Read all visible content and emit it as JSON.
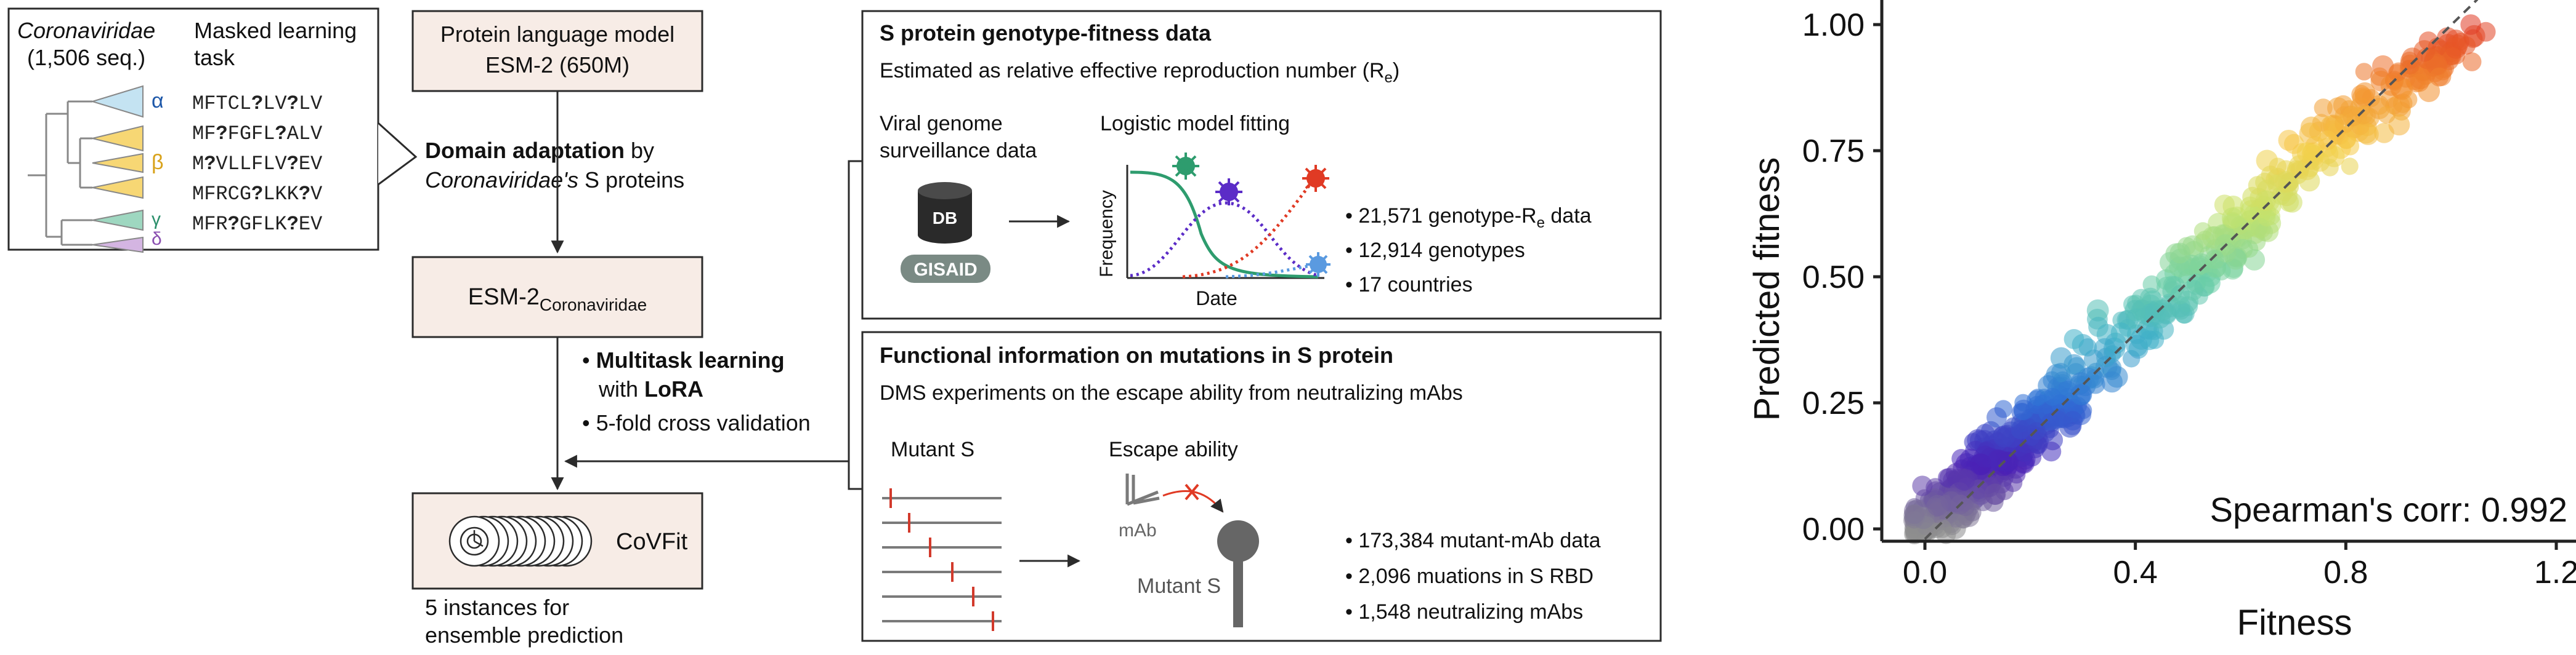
{
  "tree_panel": {
    "title_family": "Coronaviridae",
    "title_count": "(1,506 seq.)",
    "task_line1": "Masked learning",
    "task_line2": "task",
    "labels": [
      "α",
      "β",
      "γ",
      "δ"
    ],
    "sequences": [
      [
        "MFTCL",
        "?",
        "LV",
        "?",
        "LV"
      ],
      [
        "MF",
        "?",
        "FGFL",
        "?",
        "ALV"
      ],
      [
        "M",
        "?",
        "VLLFLV",
        "?",
        "EV"
      ],
      [
        "MFRCG",
        "?",
        "LKK",
        "?",
        "V"
      ],
      [
        "MFR",
        "?",
        "GFLK",
        "?",
        "EV"
      ]
    ],
    "colors": {
      "alpha": "#c4e3f2",
      "beta": "#f7d774",
      "gamma": "#9ed7c0",
      "delta": "#d4b5e2"
    }
  },
  "pipeline": {
    "plm_line1": "Protein language model",
    "plm_line2": "ESM-2 (650M)",
    "domain_bold": "Domain adaptation",
    "domain_rest": " by",
    "domain_line2_italic": "Coronaviridae's",
    "domain_line2_rest": " S proteins",
    "esm_main": "ESM-2",
    "esm_sub": "Coronaviridae",
    "bullet1_bold": "Multitask learning",
    "bullet1_line2_pre": "with ",
    "bullet1_line2_bold": "LoRA",
    "bullet2": "5-fold cross validation",
    "covfit_label": "CoVFit",
    "instances_line1": "5 instances for",
    "instances_line2": "ensemble prediction"
  },
  "genotype_panel": {
    "title": "S protein genotype-fitness data",
    "subtitle_main": "Estimated as relative effective reproduction number (R",
    "subtitle_sub": "e",
    "subtitle_end": ")",
    "viral_line1": "Viral genome",
    "viral_line2": "surveillance data",
    "db_label": "DB",
    "gisaid_label": "GISAID",
    "logistic_title": "Logistic model fitting",
    "ylabel": "Frequency",
    "xlabel": "Date",
    "stat1_main": "21,571 genotype-R",
    "stat1_sub": "e",
    "stat1_end": " data",
    "stat2": "12,914 genotypes",
    "stat3": "17 countries"
  },
  "functional_panel": {
    "title": "Functional information on mutations in S protein",
    "subtitle": "DMS experiments on the escape ability from neutralizing mAbs",
    "mutant_label": "Mutant S",
    "escape_label": "Escape ability",
    "mab_label": "mAb",
    "mutant_s_label": "Mutant S",
    "stat1": "173,384 mutant-mAb data",
    "stat2": "2,096 muations in S RBD",
    "stat3": "1,548 neutralizing mAbs"
  },
  "chart_data": {
    "type": "scatter",
    "title": "",
    "xlabel": "Fitness",
    "ylabel": "Predicted fitness",
    "xlim": [
      -0.06,
      1.25
    ],
    "ylim": [
      -0.03,
      1.05
    ],
    "xticks": [
      "0.0",
      "0.4",
      "0.8",
      "1.2"
    ],
    "xtick_values": [
      0.0,
      0.4,
      0.8,
      1.2
    ],
    "yticks": [
      "0.00",
      "0.25",
      "0.50",
      "0.75",
      "1.00"
    ],
    "ytick_values": [
      0.0,
      0.25,
      0.5,
      0.75,
      1.0
    ],
    "annotation": "Spearman's corr: 0.992",
    "reference_line": "y = x (dashed)",
    "point_count_shown": 700,
    "colormap": [
      "#8e8e8e",
      "#4b1fb5",
      "#2f6fd6",
      "#3fb0c8",
      "#6fd0a4",
      "#c6e36c",
      "#f5cf4a",
      "#f28c2c",
      "#e03a24"
    ]
  }
}
